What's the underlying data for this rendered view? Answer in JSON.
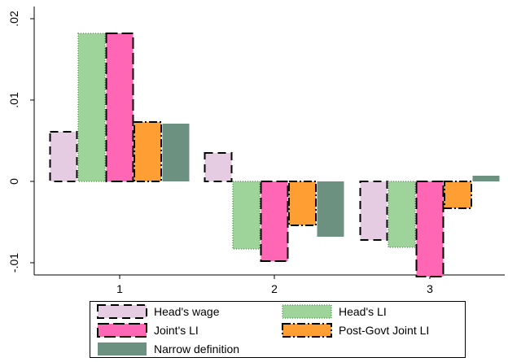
{
  "chart_data": {
    "type": "bar",
    "categories": [
      "1",
      "2",
      "3"
    ],
    "ylim": [
      -0.0115,
      0.0215
    ],
    "yticks": [
      {
        "value": 0.02,
        "label": ".02"
      },
      {
        "value": 0.01,
        "label": ".01"
      },
      {
        "value": 0,
        "label": "0"
      },
      {
        "value": -0.01,
        "label": "-.01"
      }
    ],
    "grid": false,
    "legend_position": "bottom",
    "series": [
      {
        "name": "Head's wage",
        "values": [
          0.0061,
          0.0035,
          -0.0072
        ],
        "fill": "#e6cce3",
        "stroke": "#000000",
        "dash": "10,6",
        "stroke_width": 2
      },
      {
        "name": "Head's LI",
        "values": [
          0.0182,
          -0.0083,
          -0.0081
        ],
        "fill": "#9ed39a",
        "stroke": "#5fa35b",
        "dash": "1,2",
        "stroke_width": 1.5
      },
      {
        "name": "Joint's LI",
        "values": [
          0.0182,
          -0.0098,
          -0.0117
        ],
        "fill": "#ff66b3",
        "stroke": "#000000",
        "dash": "14,5",
        "stroke_width": 2
      },
      {
        "name": "Post-Govt Joint LI",
        "values": [
          0.0073,
          -0.0054,
          -0.0033
        ],
        "fill": "#ff9f33",
        "stroke": "#000000",
        "dash": "10,3,2,3",
        "stroke_width": 2
      },
      {
        "name": "Narrow definition",
        "values": [
          0.0071,
          -0.0068,
          0.0007
        ],
        "fill": "#6d9181",
        "stroke": "none",
        "dash": "",
        "stroke_width": 0
      }
    ]
  }
}
